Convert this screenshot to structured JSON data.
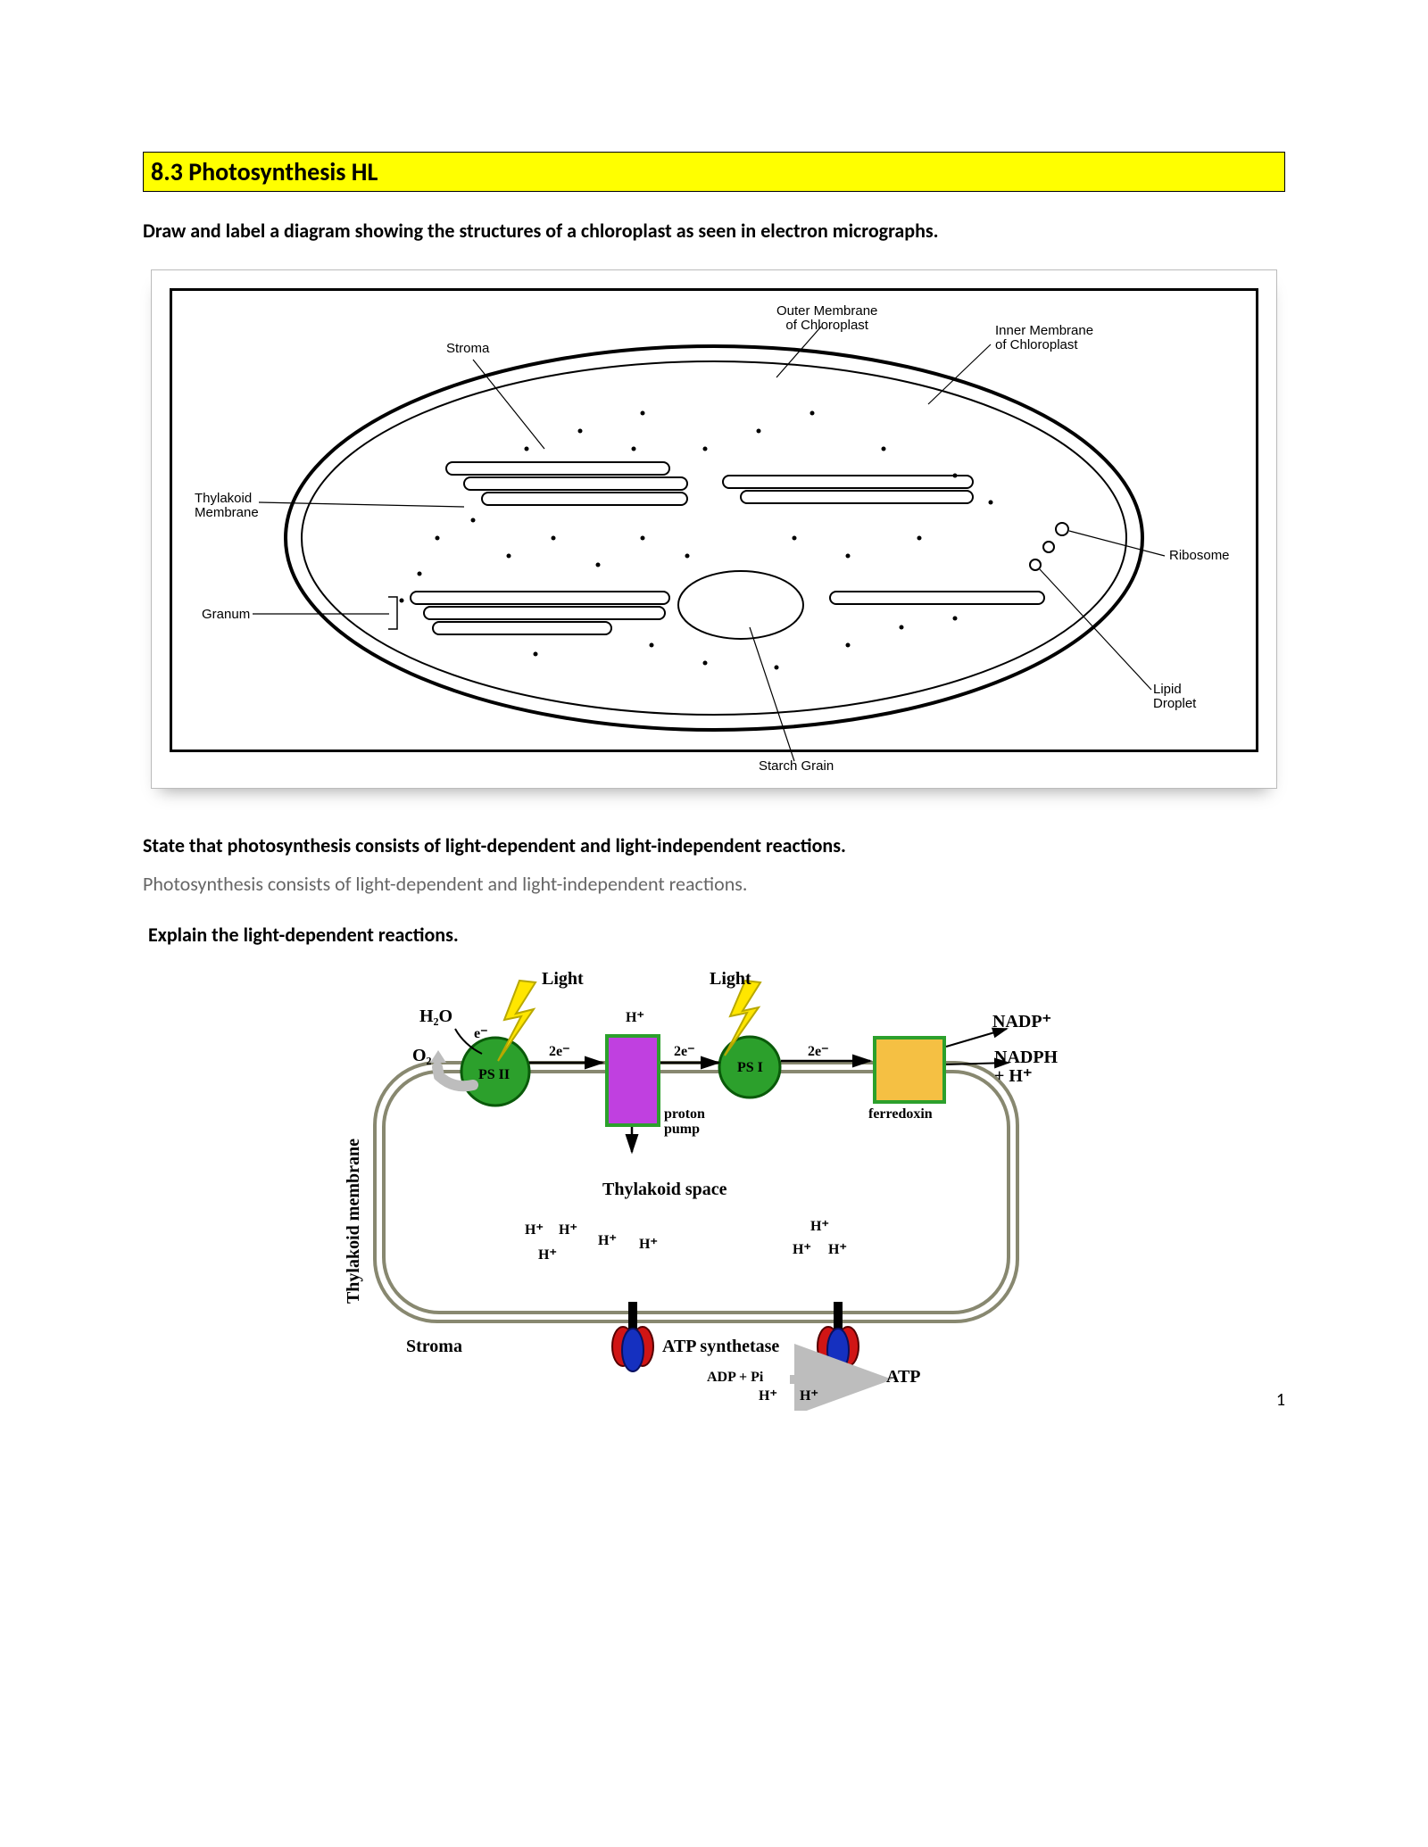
{
  "page": {
    "title": "8.3 Photosynthesis HL",
    "prompt1": "Draw and label a diagram showing the structures of a chloroplast as seen in electron micrographs.",
    "prompt2": "State that photosynthesis consists of light-dependent and light-independent reactions.",
    "bodytext1": "Photosynthesis consists of light-dependent and light-independent reactions.",
    "prompt3": "Explain the light-dependent reactions.",
    "pagenum": "1"
  },
  "chloroplast": {
    "labels": {
      "stroma": "Stroma",
      "outerMembrane": "Outer Membrane\nof Chloroplast",
      "innerMembrane": "Inner Membrane\nof Chloroplast",
      "thylakoidMembrane": "Thylakoid\nMembrane",
      "granum": "Granum",
      "ribosome": "Ribosome",
      "lipidDroplet": "Lipid\nDroplet",
      "starchGrain": "Starch Grain"
    },
    "colors": {
      "stroke": "#000000",
      "fill": "#ffffff"
    }
  },
  "lightReaction": {
    "labels": {
      "light": "Light",
      "h2o": "H₂O",
      "o2": "O₂",
      "psii": "PS II",
      "psi": "PS I",
      "protonPump": "proton\npump",
      "ferredoxin": "ferredoxin",
      "nadpPlus": "NADP⁺",
      "nadph": "NADPH\n+ H⁺",
      "thylakoidSpace": "Thylakoid space",
      "thylakoidMembrane": "Thylakoid membrane",
      "stroma": "Stroma",
      "atpSynthetase": "ATP synthetase",
      "adpPi": "ADP + Pi",
      "atp": "ATP",
      "hPlus": "H⁺",
      "eMinus": "e⁻",
      "twoE": "2e⁻"
    },
    "colors": {
      "membrane": "#b8b8a8",
      "membraneStroke": "#888870",
      "psGreen": "#2ca02c",
      "psStroke": "#0a5a0a",
      "pumpFill": "#c040e0",
      "pumpStroke": "#2ca02c",
      "ferredoxinFill": "#f5c043",
      "ferredoxinStroke": "#2ca02c",
      "lightning": "#ffe600",
      "lightningStroke": "#b8a800",
      "atpSynthBlue": "#1530c0",
      "atpSynthRed": "#d01515",
      "arrow": "#000000",
      "greyArrow": "#bdbdbd"
    }
  }
}
